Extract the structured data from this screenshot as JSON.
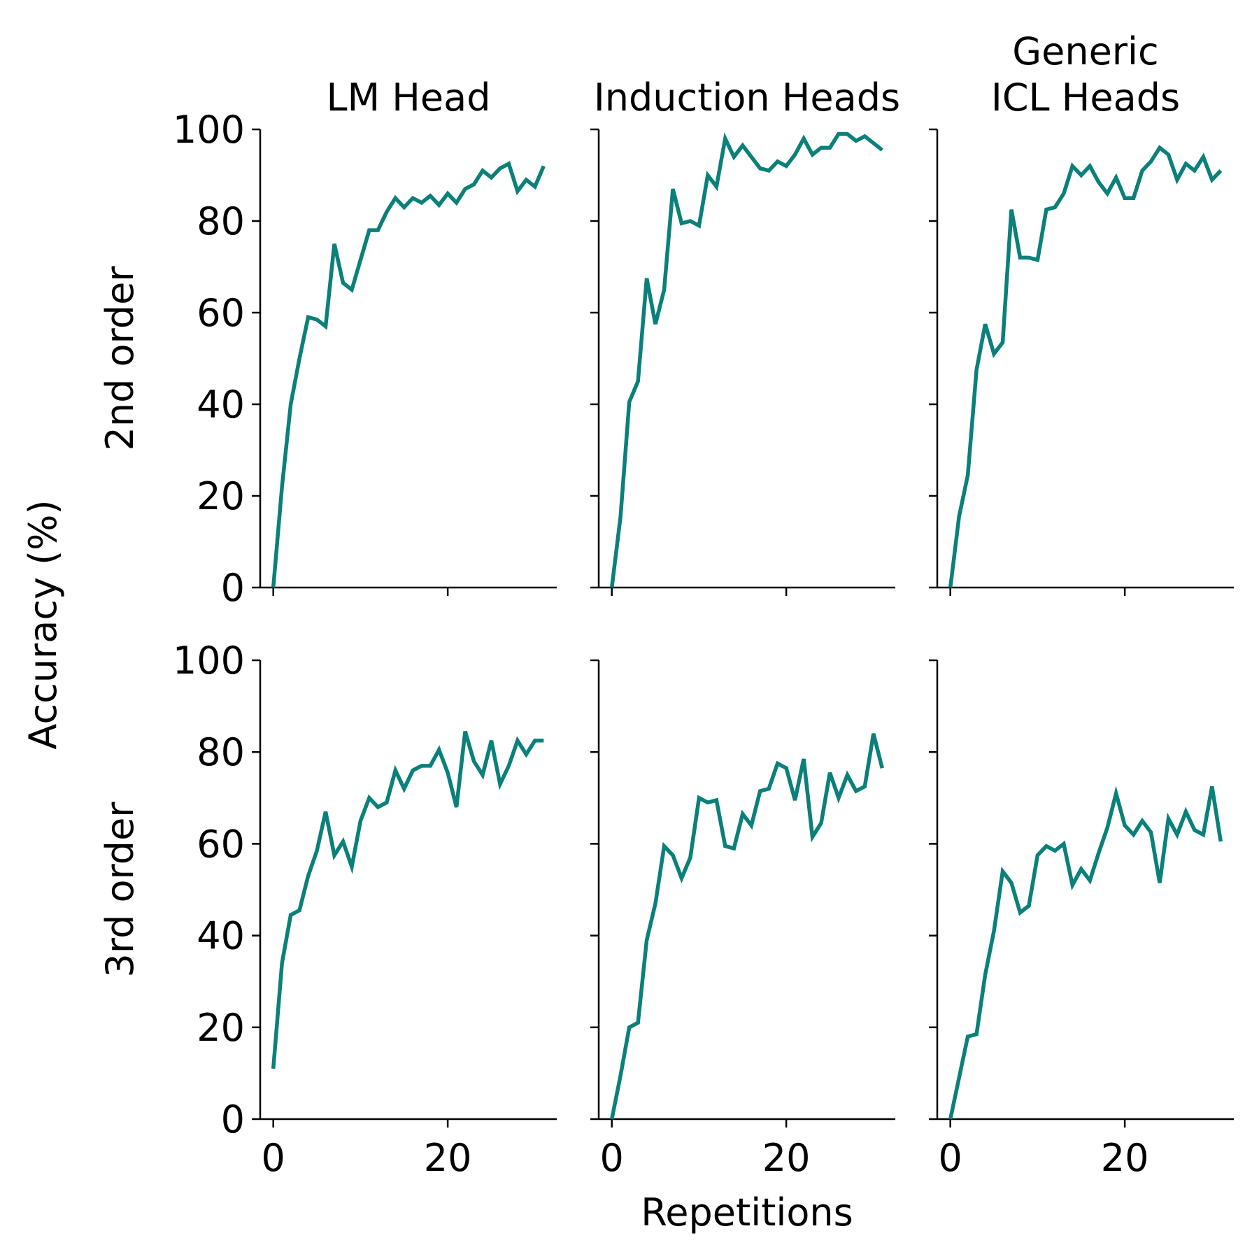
{
  "chart_data": {
    "type": "line",
    "layout": "2x3 small multiples, shared x and y axes",
    "column_titles": [
      "LM Head",
      "Induction Heads",
      "Generic\nICL Heads"
    ],
    "row_labels": [
      "2nd order",
      "3rd order"
    ],
    "xlabel": "Repetitions",
    "ylabel": "Accuracy (%)",
    "xlim": [
      -1.5,
      32.5
    ],
    "ylim": [
      0,
      100
    ],
    "xticks": [
      0,
      20
    ],
    "yticks": [
      0,
      20,
      40,
      60,
      80,
      100
    ],
    "line_color": "#0a807a",
    "grid": false,
    "legend": "none",
    "x": [
      0,
      1,
      2,
      3,
      4,
      5,
      6,
      7,
      8,
      9,
      10,
      11,
      12,
      13,
      14,
      15,
      16,
      17,
      18,
      19,
      20,
      21,
      22,
      23,
      24,
      25,
      26,
      27,
      28,
      29,
      30,
      31
    ],
    "panels": [
      {
        "row": "2nd order",
        "column": "LM Head",
        "values": [
          0,
          22,
          40,
          50,
          59,
          58.5,
          57,
          75,
          66.5,
          65,
          71.5,
          78,
          78,
          82,
          85,
          83,
          85,
          84,
          85.5,
          83.5,
          86,
          84,
          87,
          88,
          91,
          89.5,
          91.5,
          92.5,
          86.5,
          89,
          87.5,
          92
        ]
      },
      {
        "row": "2nd order",
        "column": "Induction Heads",
        "values": [
          0,
          15.5,
          40.5,
          45,
          67.5,
          57.5,
          65,
          87,
          79.5,
          80,
          79,
          90,
          87.5,
          98,
          94,
          96.5,
          94,
          91.5,
          91,
          93,
          92,
          94.5,
          98,
          94.5,
          96,
          96,
          99,
          99,
          97.5,
          98.5,
          97,
          95.5
        ]
      },
      {
        "row": "2nd order",
        "column": "Generic\nICL Heads",
        "values": [
          0,
          15.5,
          24.5,
          47.5,
          57.5,
          51,
          53.5,
          82.5,
          72,
          72,
          71.5,
          82.5,
          83,
          86,
          92,
          90,
          92,
          88.5,
          86,
          89.5,
          85,
          85,
          91,
          93,
          96,
          94.5,
          89,
          92.5,
          91,
          94,
          89,
          91
        ]
      },
      {
        "row": "3rd order",
        "column": "LM Head",
        "values": [
          11,
          34,
          44.5,
          45.5,
          53,
          58.5,
          67,
          57.5,
          60.5,
          55,
          65,
          70,
          68,
          69,
          76,
          72,
          76,
          77,
          77,
          80.5,
          75.5,
          68,
          84.5,
          78,
          75,
          82.5,
          73,
          77,
          82.5,
          79.5,
          82.5,
          82.5
        ]
      },
      {
        "row": "3rd order",
        "column": "Induction Heads",
        "values": [
          0,
          9.5,
          20,
          21,
          39,
          47,
          59.5,
          57.5,
          52.5,
          57,
          70,
          69,
          69.5,
          59.5,
          59,
          66.5,
          64,
          71.5,
          72,
          77.5,
          76.5,
          69.5,
          78.5,
          61.5,
          64.5,
          75.5,
          70,
          75,
          71.5,
          72.5,
          84,
          76.5
        ]
      },
      {
        "row": "3rd order",
        "column": "Generic\nICL Heads",
        "values": [
          0,
          9,
          18,
          18.5,
          31.5,
          41,
          54,
          51.5,
          45,
          46.5,
          57.5,
          59.5,
          58.5,
          60,
          51,
          54.5,
          52,
          58,
          63.5,
          71,
          64,
          62,
          65,
          62.5,
          51.5,
          65.5,
          62,
          67,
          63,
          62,
          72.5,
          60.5
        ]
      }
    ]
  }
}
